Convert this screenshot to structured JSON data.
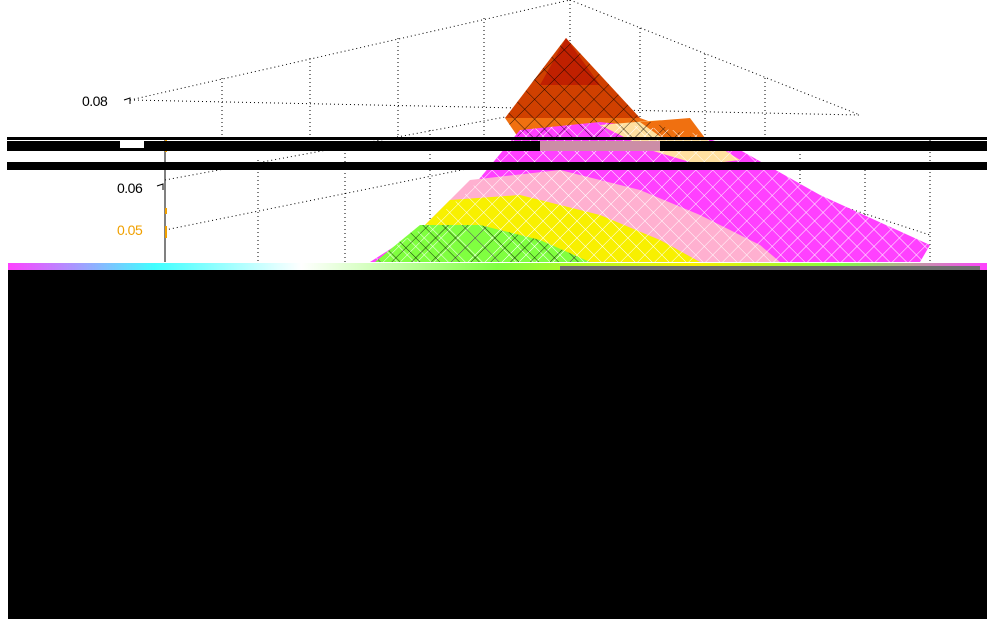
{
  "window": {
    "title": ""
  },
  "chart_data": {
    "type": "surface",
    "title": "",
    "xlabel": "",
    "ylabel": "",
    "zlabel": "",
    "z_ticks": [
      "0.08",
      "0.06",
      "0.05"
    ],
    "z_range": [
      0.04,
      0.09
    ],
    "peak_z": 0.09,
    "grid": true,
    "colors": {
      "ghost_tick": "#f0a000",
      "peak": "#c02000",
      "mid_warm": "#f07010",
      "pink": "#ff40ff",
      "yellow": "#f8f000",
      "green": "#80ff40",
      "grid_line": "#000000"
    }
  },
  "artifacts": {
    "horizontal_bands": 3,
    "lower_region": "black",
    "noise_strip": true
  }
}
